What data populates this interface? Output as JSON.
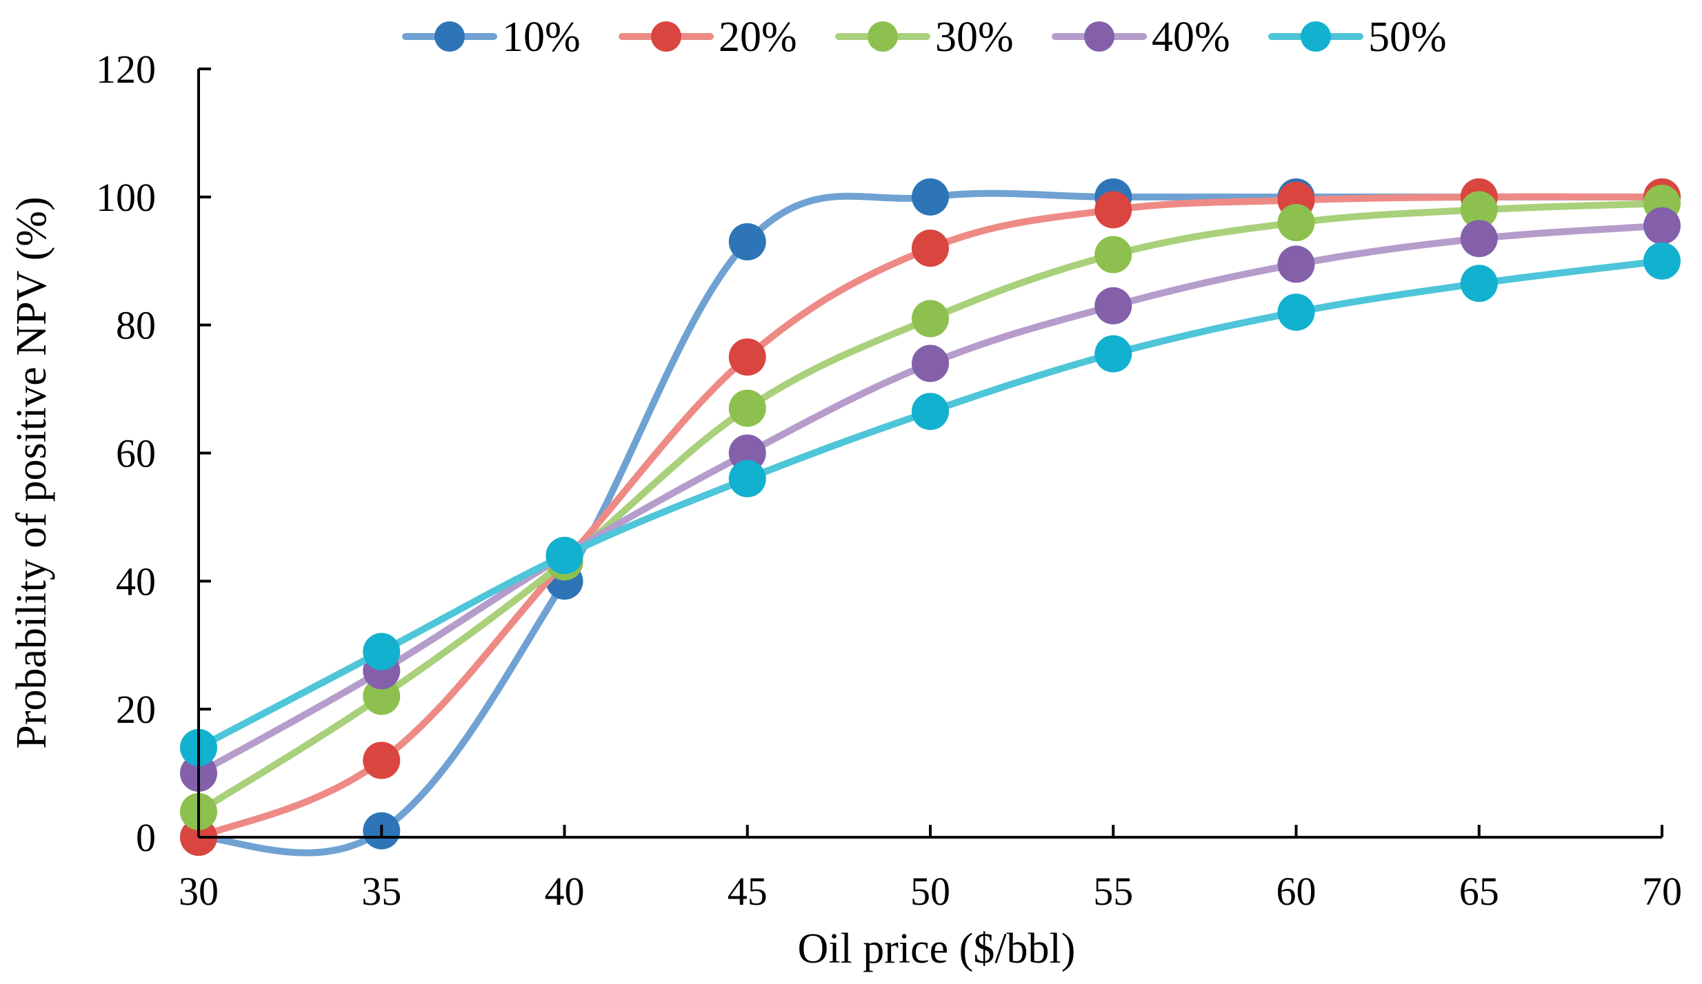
{
  "chart_data": {
    "type": "line",
    "title": "",
    "xlabel": "Oil price ($/bbl)",
    "ylabel": "Probability of positive NPV (%)",
    "x": [
      30,
      35,
      40,
      45,
      50,
      55,
      60,
      65,
      70
    ],
    "x_tick_labels": [
      "30",
      "35",
      "40",
      "45",
      "50",
      "55",
      "60",
      "65",
      "70"
    ],
    "y_tick_labels": [
      "0",
      "20",
      "40",
      "60",
      "80",
      "100",
      "120"
    ],
    "y_ticks": [
      0,
      20,
      40,
      60,
      80,
      100,
      120
    ],
    "xlim": [
      30,
      70
    ],
    "ylim": [
      0,
      120
    ],
    "grid": false,
    "legend_position": "top",
    "smooth": true,
    "series": [
      {
        "name": "10%",
        "line_color": "#6FA2D2",
        "marker_color": "#2D75B6",
        "values": [
          0,
          1,
          40,
          93,
          100,
          100,
          100,
          100,
          100
        ]
      },
      {
        "name": "20%",
        "line_color": "#EE8A85",
        "marker_color": "#D9463F",
        "values": [
          0,
          12,
          43,
          75,
          92,
          98,
          99.5,
          100,
          100
        ]
      },
      {
        "name": "30%",
        "line_color": "#A9D07A",
        "marker_color": "#8DC04F",
        "values": [
          4,
          22,
          43,
          67,
          81,
          91,
          96,
          98,
          99
        ]
      },
      {
        "name": "40%",
        "line_color": "#B59CCB",
        "marker_color": "#8460AA",
        "values": [
          10,
          26,
          44,
          60,
          74,
          83,
          89.5,
          93.5,
          95.5
        ]
      },
      {
        "name": "50%",
        "line_color": "#4EC5D8",
        "marker_color": "#11B1CF",
        "values": [
          14,
          29,
          44,
          56,
          66.5,
          75.5,
          82,
          86.5,
          90
        ]
      }
    ]
  }
}
